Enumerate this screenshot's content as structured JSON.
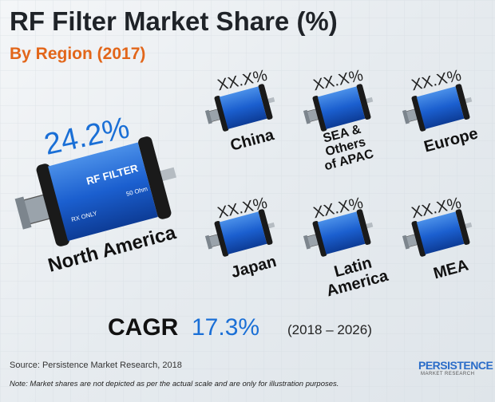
{
  "header": {
    "title": "RF Filter Market Share (%)",
    "subtitle": "By Region (2017)"
  },
  "regions": [
    {
      "name": "North America",
      "share": "24.2%"
    },
    {
      "name": "China",
      "share": "XX.X%"
    },
    {
      "name": "SEA & Others of APAC",
      "share": "XX.X%"
    },
    {
      "name": "Europe",
      "share": "XX.X%"
    },
    {
      "name": "Japan",
      "share": "XX.X%"
    },
    {
      "name": "Latin America",
      "share": "XX.X%"
    },
    {
      "name": "MEA",
      "share": "XX.X%"
    }
  ],
  "device": {
    "label": "RF FILTER",
    "impedance": "50 Ohm",
    "mode": "RX ONLY"
  },
  "cagr": {
    "label": "CAGR",
    "value": "17.3%",
    "period": "(2018 – 2026)"
  },
  "footer": {
    "source": "Source: Persistence Market Research, 2018",
    "note": "Note: Market shares are not depicted as per the actual scale and are only for illustration purposes.",
    "logo": "PERSISTENCE",
    "logo_sub": "MARKET RESEARCH"
  }
}
